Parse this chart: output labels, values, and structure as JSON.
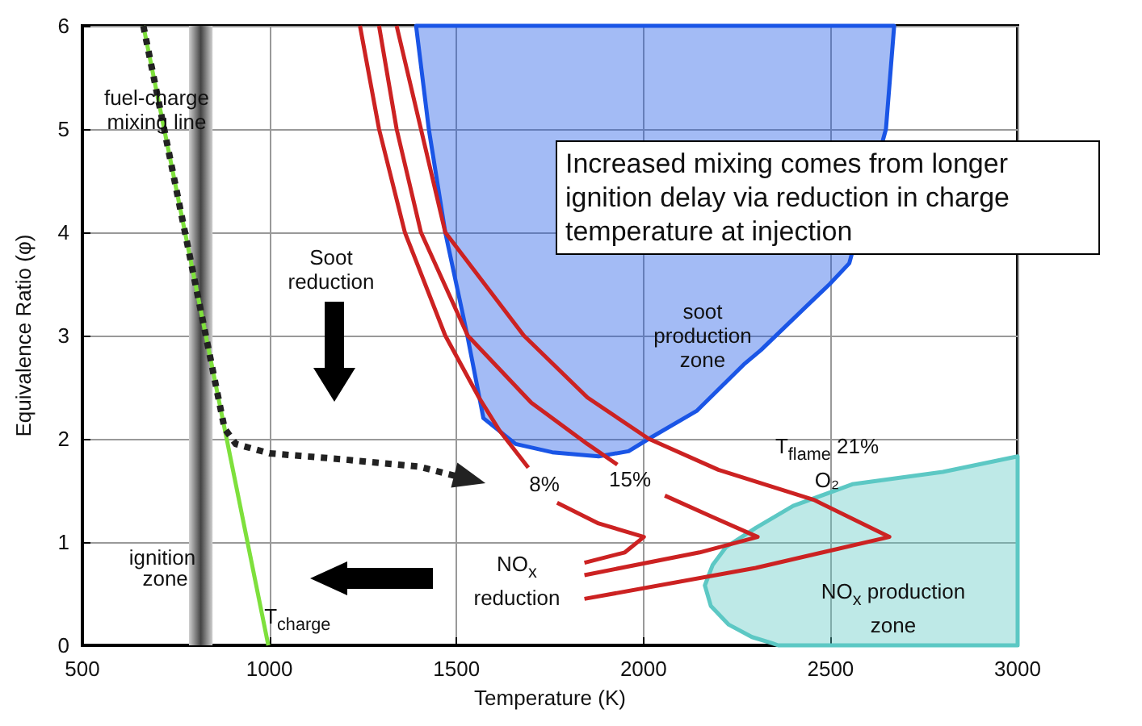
{
  "chart_data": {
    "type": "line",
    "xlabel": "Temperature (K)",
    "ylabel": "Equivalence Ratio (φ)",
    "xlim": [
      500,
      3000
    ],
    "xticks": [
      500,
      1000,
      1500,
      2000,
      2500,
      3000
    ],
    "ylim": [
      0,
      6
    ],
    "yticks": [
      0,
      1,
      2,
      3,
      4,
      5,
      6
    ],
    "grid": true,
    "marker": "none",
    "series": [
      {
        "type": "area",
        "name": "soot production zone",
        "color": "#1a55e6",
        "x": [
          1392,
          1426,
          1470,
          1529,
          1572,
          1658,
          1756,
          1880,
          1960,
          2014,
          2142,
          2271,
          2314,
          2440,
          2498,
          2550,
          2610,
          2648,
          2670
        ],
        "values": [
          6,
          5,
          4,
          3,
          2.2,
          1.95,
          1.87,
          1.83,
          1.88,
          2.0,
          2.27,
          2.73,
          2.86,
          3.3,
          3.5,
          3.7,
          null,
          5,
          6
        ]
      },
      {
        "type": "area",
        "name": "NO$_{x}$ production zone",
        "color": "#5cc8c4",
        "x": [
          3000,
          2800,
          2558,
          2400,
          2301,
          2220,
          2185,
          2164,
          2180,
          2228,
          2290,
          2344,
          2360,
          3000
        ],
        "values": [
          1.83,
          1.68,
          1.56,
          1.35,
          1.14,
          0.95,
          0.78,
          0.58,
          0.38,
          0.2,
          0.08,
          0.02,
          0,
          0
        ]
      },
      {
        "name": "8%",
        "color": "#cc2222",
        "x": [
          1242,
          1293,
          1362,
          1470,
          1560,
          1615,
          1692,
          1720,
          1769,
          1880,
          2001,
          1950,
          1842
        ],
        "values": [
          6,
          5,
          4,
          3,
          2.4,
          2.08,
          1.72,
          null,
          1.38,
          1.18,
          1.05,
          0.9,
          0.8
        ]
      },
      {
        "name": "15%",
        "color": "#cc2222",
        "x": [
          1293,
          1340,
          1405,
          1530,
          1700,
          1850,
          1930,
          1980,
          2057,
          2180,
          2305,
          2150,
          1842
        ],
        "values": [
          6,
          5,
          4,
          3,
          2.35,
          1.95,
          1.75,
          null,
          1.45,
          1.25,
          1.05,
          0.9,
          0.68
        ]
      },
      {
        "name": "T$_{flame}$ 21% O₂",
        "color": "#cc2222",
        "x": [
          1340,
          1405,
          1470,
          1680,
          1850,
          2014,
          2200,
          2455,
          2657,
          2300,
          1842
        ],
        "values": [
          6,
          5,
          4,
          3,
          2.4,
          2.0,
          1.7,
          1.41,
          1.05,
          0.75,
          0.45
        ]
      },
      {
        "name": "fuel-charge mixing line",
        "color": "#7ee03c",
        "x": [
          663,
          997
        ],
        "values": [
          6,
          0
        ]
      },
      {
        "color": "#222222",
        "line_style": "dotted",
        "x": [
          663,
          880,
          910,
          1000,
          1200,
          1400,
          1520
        ],
        "values": [
          6,
          2.1,
          1.95,
          1.86,
          1.8,
          1.73,
          1.62
        ]
      }
    ],
    "bands": [
      {
        "axis": "x",
        "from": 785,
        "to": 848,
        "label": "ignition zone"
      }
    ],
    "annotations": [
      "Increased mixing comes from longer ignition delay via reduction in charge temperature at injection",
      "Soot reduction",
      "NO$_{x}$ reduction",
      {
        "text": "T$_{charge}$",
        "x": 997,
        "y": 0
      }
    ]
  }
}
